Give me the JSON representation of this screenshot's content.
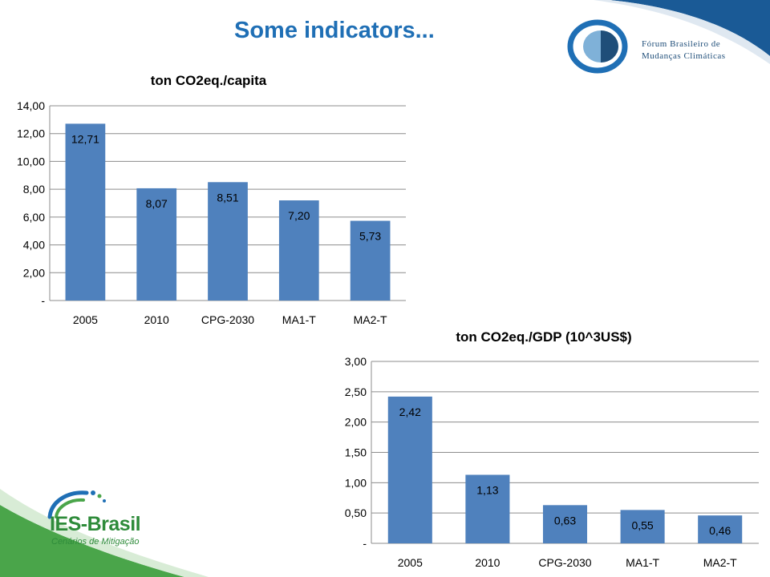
{
  "slide": {
    "title": "Some indicators..."
  },
  "logos": {
    "forum_line1": "Fórum Brasileiro de",
    "forum_line2": "Mudanças Climáticas",
    "ies_name": "IES-Brasil",
    "ies_subtitle": "Cenários de Mitigação"
  },
  "colors": {
    "bar": "#4f81bd",
    "title": "#1f6fb5",
    "band": "#1a5a96",
    "ies_green": "#2e8b3a"
  },
  "chart_data": [
    {
      "type": "bar",
      "title": "ton CO2eq./capita",
      "categories": [
        "2005",
        "2010",
        "CPG-2030",
        "MA1-T",
        "MA2-T"
      ],
      "values": [
        12.71,
        8.07,
        8.51,
        7.2,
        5.73
      ],
      "value_labels": [
        "12,71",
        "8,07",
        "8,51",
        "7,20",
        "5,73"
      ],
      "ylim": [
        0,
        14
      ],
      "yticks": [
        0,
        2,
        4,
        6,
        8,
        10,
        12,
        14
      ],
      "ytick_labels": [
        "-",
        "2,00",
        "4,00",
        "6,00",
        "8,00",
        "10,00",
        "12,00",
        "14,00"
      ],
      "grid": true,
      "legend": "none"
    },
    {
      "type": "bar",
      "title": "ton CO2eq./GDP (10^3US$)",
      "categories": [
        "2005",
        "2010",
        "CPG-2030",
        "MA1-T",
        "MA2-T"
      ],
      "values": [
        2.42,
        1.13,
        0.63,
        0.55,
        0.46
      ],
      "value_labels": [
        "2,42",
        "1,13",
        "0,63",
        "0,55",
        "0,46"
      ],
      "ylim": [
        0,
        3
      ],
      "yticks": [
        0,
        0.5,
        1,
        1.5,
        2,
        2.5,
        3
      ],
      "ytick_labels": [
        "-",
        "0,50",
        "1,00",
        "1,50",
        "2,00",
        "2,50",
        "3,00"
      ],
      "grid": true,
      "legend": "none"
    }
  ]
}
